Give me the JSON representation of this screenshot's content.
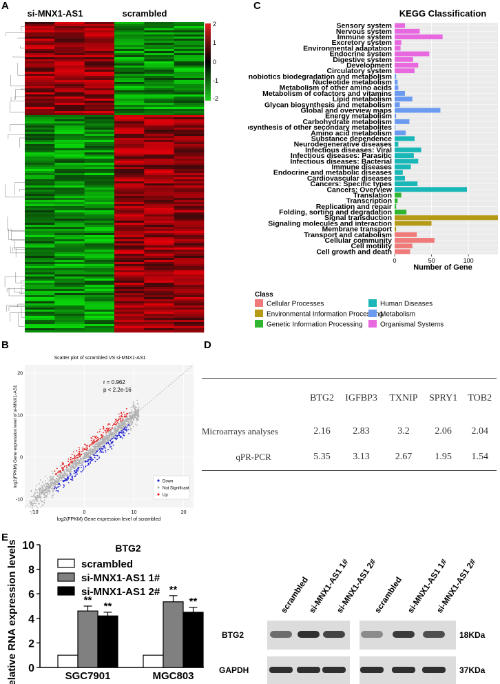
{
  "panels": {
    "a": "A",
    "b": "B",
    "c": "C",
    "d": "D",
    "e": "E"
  },
  "heatmap": {
    "groups": [
      "si-MNX1-AS1",
      "scrambled"
    ],
    "colorbar_ticks": [
      "2",
      "1",
      "0",
      "-1",
      "-2"
    ],
    "colors": {
      "high": "#e02020",
      "mid": "#000000",
      "low": "#20d020"
    }
  },
  "kegg": {
    "title": "KEGG Classification",
    "xlabel": "Number of Gene",
    "legend_title": "Class",
    "classes": [
      {
        "name": "Cellular Processes",
        "color": "#f07a7a"
      },
      {
        "name": "Environmental Information Processing",
        "color": "#b59a16"
      },
      {
        "name": "Genetic Information Processing",
        "color": "#2fb52f"
      },
      {
        "name": "Human Diseases",
        "color": "#19b7b7"
      },
      {
        "name": "Metabolism",
        "color": "#6b9bf0"
      },
      {
        "name": "Organismal Systems",
        "color": "#e868e0"
      }
    ]
  },
  "chart_data": [
    {
      "type": "bar",
      "orientation": "horizontal",
      "title": "KEGG Classification",
      "xlabel": "Number of Gene",
      "xlim": [
        0,
        140
      ],
      "xticks": [
        0,
        50,
        100
      ],
      "categories": [
        "Sensory system",
        "Nervous system",
        "Immune system",
        "Excretory system",
        "Environmental adaptation",
        "Endocrine system",
        "Digestive system",
        "Development",
        "Circulatory system",
        "Xenobiotics biodegradation and metabolism",
        "Nucleotide metabolism",
        "Metabolism of other amino acids",
        "Metabolism of cofactors and vitamins",
        "Lipid metabolism",
        "Glycan biosynthesis and metabolism",
        "Global and overview maps",
        "Energy metabolism",
        "Carbohydrate metabolism",
        "Biosynthesis of other secondary metabolites",
        "Amino acid metabolism",
        "Substance dependence",
        "Neurodegenerative diseases",
        "Infectious diseases: Viral",
        "Infectious diseases: Parasitic",
        "Infectious diseases: Bacterial",
        "Immune diseases",
        "Endocrine and metabolic diseases",
        "Cardiovascular diseases",
        "Cancers: Specific types",
        "Cancers: Overview",
        "Translation",
        "Transcription",
        "Replication and repair",
        "Folding, sorting and degradation",
        "Signal transduction",
        "Signaling molecules and interaction",
        "Membrane transport",
        "Transport and catabolism",
        "Cellular community",
        "Cell motility",
        "Cell growth and death"
      ],
      "values": [
        14,
        34,
        65,
        9,
        8,
        47,
        25,
        32,
        27,
        2,
        4,
        5,
        14,
        24,
        7,
        62,
        2,
        20,
        1,
        15,
        27,
        5,
        36,
        26,
        32,
        22,
        11,
        14,
        31,
        98,
        9,
        4,
        2,
        16,
        140,
        50,
        2,
        30,
        54,
        24,
        21
      ],
      "classes": [
        "Organismal Systems",
        "Organismal Systems",
        "Organismal Systems",
        "Organismal Systems",
        "Organismal Systems",
        "Organismal Systems",
        "Organismal Systems",
        "Organismal Systems",
        "Organismal Systems",
        "Metabolism",
        "Metabolism",
        "Metabolism",
        "Metabolism",
        "Metabolism",
        "Metabolism",
        "Metabolism",
        "Metabolism",
        "Metabolism",
        "Metabolism",
        "Metabolism",
        "Human Diseases",
        "Human Diseases",
        "Human Diseases",
        "Human Diseases",
        "Human Diseases",
        "Human Diseases",
        "Human Diseases",
        "Human Diseases",
        "Human Diseases",
        "Human Diseases",
        "Genetic Information Processing",
        "Genetic Information Processing",
        "Genetic Information Processing",
        "Genetic Information Processing",
        "Environmental Information Processing",
        "Environmental Information Processing",
        "Environmental Information Processing",
        "Cellular Processes",
        "Cellular Processes",
        "Cellular Processes",
        "Cellular Processes"
      ]
    },
    {
      "type": "scatter",
      "title": "Scatter plot of scrambled VS si-MNX1-AS1",
      "xlabel": "log2(FPKM) Gene expression level of scrambled",
      "ylabel": "log2(FPKM) Gene expression level of si-MNX1-AS1",
      "xlim": [
        -12,
        22
      ],
      "ylim": [
        -12,
        22
      ],
      "xticks": [
        -10,
        0,
        10,
        20
      ],
      "yticks": [
        -10,
        0,
        10,
        20
      ],
      "legend": [
        "Down",
        "Not Significant",
        "Up"
      ],
      "annotations": [
        "r = 0.962",
        "p < 2.2e-16"
      ]
    },
    {
      "type": "bar",
      "title": "BTG2",
      "ylabel": "Relative RNA expression levels",
      "ylim": [
        0,
        10
      ],
      "yticks": [
        0,
        2,
        4,
        6,
        8,
        10
      ],
      "categories": [
        "SGC7901",
        "MGC803"
      ],
      "series": [
        {
          "name": "scrambled",
          "values": [
            1.0,
            1.0
          ],
          "errors": [
            0,
            0
          ],
          "color": "#ffffff"
        },
        {
          "name": "si-MNX1-AS1 1#",
          "values": [
            4.6,
            5.35
          ],
          "errors": [
            0.4,
            0.5
          ],
          "color": "#808080"
        },
        {
          "name": "si-MNX1-AS1 2#",
          "values": [
            4.2,
            4.5
          ],
          "errors": [
            0.3,
            0.4
          ],
          "color": "#000000"
        }
      ],
      "significance": [
        "**",
        "**",
        "**",
        "**"
      ]
    }
  ],
  "table": {
    "headers": [
      "BTG2",
      "IGFBP3",
      "TXNIP",
      "SPRY1",
      "TOB2"
    ],
    "rows": [
      {
        "label": "Microarrays analyses",
        "values": [
          "2.16",
          "2.83",
          "3.2",
          "2.06",
          "2.04"
        ]
      },
      {
        "label": "qPR-PCR",
        "values": [
          "5.35",
          "3.13",
          "2.67",
          "1.95",
          "1.54"
        ]
      }
    ]
  },
  "western": {
    "lanes": [
      "scrambled",
      "si-MNX1-AS1 1#",
      "si-MNX1-AS1 2#",
      "scrambled",
      "si-MNX1-AS1 1#",
      "si-MNX1-AS1 2#"
    ],
    "proteins": [
      "BTG2",
      "GAPDH"
    ],
    "sizes": [
      "18KDa",
      "37KDa"
    ]
  }
}
